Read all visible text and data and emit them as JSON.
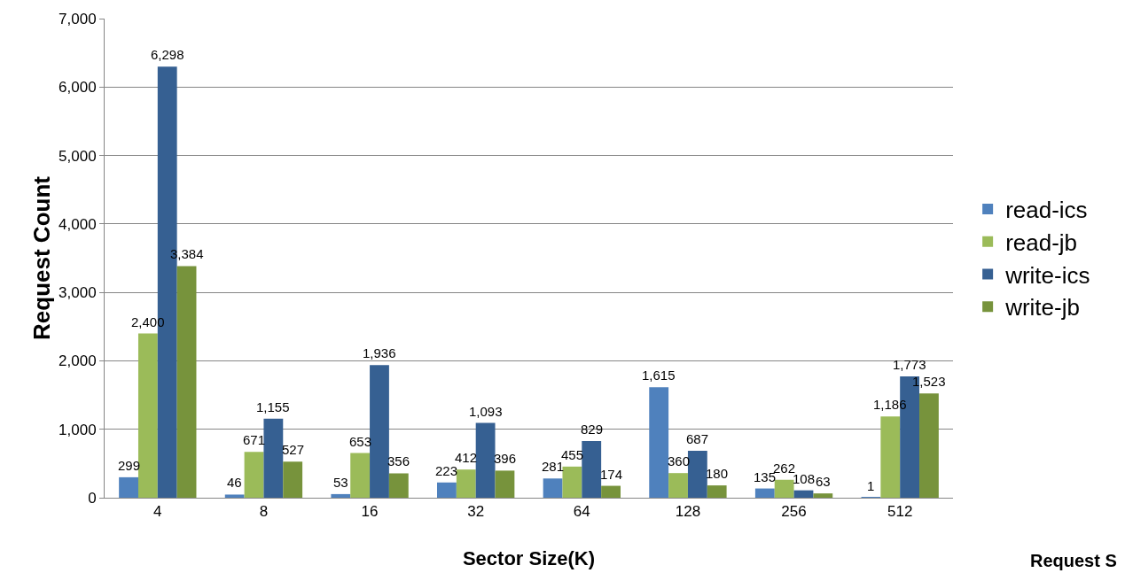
{
  "chart_data": {
    "type": "bar",
    "xlabel": "Sector Size(K)",
    "ylabel": "Request Count",
    "categories": [
      "4",
      "8",
      "16",
      "32",
      "64",
      "128",
      "256",
      "512"
    ],
    "series": [
      {
        "name": "read-ics",
        "color": "#4f81bd",
        "values": [
          299,
          46,
          53,
          223,
          281,
          1615,
          135,
          1
        ],
        "value_labels": [
          "299",
          "46",
          "53",
          "223",
          "281",
          "1,615",
          "135",
          "1"
        ]
      },
      {
        "name": "read-jb",
        "color": "#9bbb59",
        "values": [
          2400,
          671,
          653,
          412,
          455,
          360,
          262,
          1186
        ],
        "value_labels": [
          "2,400",
          "671",
          "653",
          "412",
          "455",
          "360",
          "262",
          "1,186"
        ]
      },
      {
        "name": "write-ics",
        "color": "#366092",
        "values": [
          6298,
          1155,
          1936,
          1093,
          829,
          687,
          108,
          1773
        ],
        "value_labels": [
          "6,298",
          "1,155",
          "1,936",
          "1,093",
          "829",
          "687",
          "108",
          "1,773"
        ]
      },
      {
        "name": "write-jb",
        "color": "#77933c",
        "values": [
          3384,
          527,
          356,
          396,
          174,
          180,
          63,
          1523
        ],
        "value_labels": [
          "3,384",
          "527",
          "356",
          "396",
          "174",
          "180",
          "63",
          "1,523"
        ]
      }
    ],
    "ylim": [
      0,
      7000
    ],
    "yticks": [
      {
        "value": 0,
        "label": "0"
      },
      {
        "value": 1000,
        "label": "1,000"
      },
      {
        "value": 2000,
        "label": "2,000"
      },
      {
        "value": 3000,
        "label": "3,000"
      },
      {
        "value": 4000,
        "label": "4,000"
      },
      {
        "value": 5000,
        "label": "5,000"
      },
      {
        "value": 6000,
        "label": "6,000"
      },
      {
        "value": 7000,
        "label": "7,000"
      }
    ],
    "grid": "y",
    "legend": "right",
    "annotations": [
      "Request S"
    ]
  }
}
